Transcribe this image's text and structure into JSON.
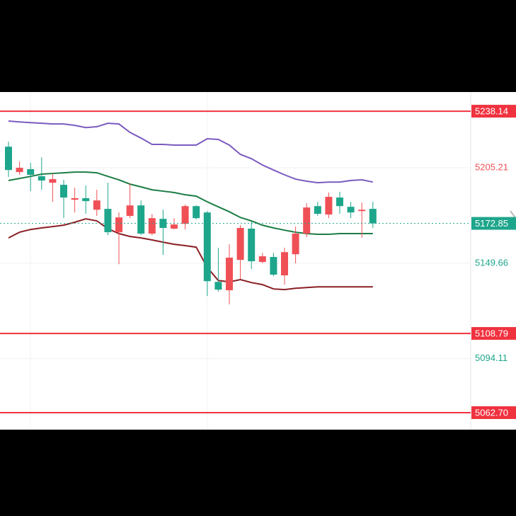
{
  "chart_data": {
    "type": "candlestick",
    "open": [
      5217.5,
      5202.7,
      5204.4,
      5200.3,
      5196.5,
      5195.3,
      5186.6,
      5187.5,
      5180.8,
      5181.3,
      5167.7,
      5177.2,
      5183.3,
      5166.9,
      5175.5,
      5169.8,
      5172.6,
      5182.9,
      5179.2,
      5138.8,
      5133.9,
      5151.6,
      5169.8,
      5150.4,
      5153.3,
      5142.6,
      5154.9,
      5166.9,
      5182.9,
      5178.0,
      5187.9,
      5182.5,
      5180.0,
      5181.3
    ],
    "high": [
      5220.4,
      5208.9,
      5208.1,
      5211.3,
      5201.9,
      5198.2,
      5193.6,
      5194.9,
      5192.4,
      5196.5,
      5179.2,
      5196.1,
      5186.2,
      5178.4,
      5180.8,
      5175.9,
      5183.8,
      5183.3,
      5180.0,
      5158.6,
      5160.7,
      5171.8,
      5173.9,
      5155.7,
      5155.7,
      5158.6,
      5171.0,
      5184.6,
      5185.4,
      5190.8,
      5191.2,
      5185.4,
      5185.0,
      5185.4
    ],
    "low": [
      5199.8,
      5201.1,
      5191.6,
      5192.4,
      5185.4,
      5175.9,
      5179.2,
      5178.4,
      5177.2,
      5166.0,
      5149.1,
      5175.9,
      5166.0,
      5166.0,
      5154.5,
      5169.3,
      5169.3,
      5175.1,
      5130.6,
      5133.1,
      5125.7,
      5140.5,
      5146.3,
      5149.6,
      5142.1,
      5137.2,
      5149.6,
      5164.8,
      5177.2,
      5175.9,
      5178.4,
      5175.9,
      5164.4,
      5170.2
    ],
    "close": [
      5203.9,
      5205.2,
      5201.1,
      5197.8,
      5198.6,
      5187.9,
      5187.5,
      5185.8,
      5186.2,
      5167.7,
      5176.3,
      5183.3,
      5166.9,
      5175.9,
      5170.2,
      5172.2,
      5182.9,
      5175.9,
      5139.2,
      5134.3,
      5152.9,
      5170.2,
      5150.8,
      5153.7,
      5143.0,
      5156.1,
      5166.9,
      5182.1,
      5178.4,
      5188.3,
      5182.9,
      5179.2,
      5180.8,
      5172.85
    ],
    "up_color": "#ef5056",
    "down_color": "#1ea68c",
    "series": [
      {
        "color": "#7b5bc0",
        "values": [
          5232.4,
          5231.9,
          5231.5,
          5231.1,
          5230.7,
          5230.7,
          5229.9,
          5228.6,
          5229.1,
          5231.1,
          5230.7,
          5225.8,
          5222.5,
          5218.8,
          5218.8,
          5218.4,
          5218.4,
          5218.4,
          5222.1,
          5221.7,
          5218.4,
          5213.0,
          5210.5,
          5206.8,
          5203.9,
          5201.1,
          5198.6,
          5197.4,
          5196.5,
          5196.9,
          5196.9,
          5197.8,
          5198.2,
          5196.9
        ]
      },
      {
        "color": "#1c7d45",
        "values": [
          5197.8,
          5199.0,
          5200.2,
          5201.5,
          5201.9,
          5202.3,
          5202.7,
          5202.7,
          5202.3,
          5200.2,
          5198.2,
          5195.7,
          5194.1,
          5192.4,
          5191.6,
          5190.8,
          5189.5,
          5188.7,
          5185.4,
          5182.5,
          5179.6,
          5176.3,
          5174.3,
          5171.8,
          5170.2,
          5168.9,
          5167.7,
          5166.9,
          5166.5,
          5166.5,
          5166.9,
          5166.9,
          5166.9,
          5166.9
        ]
      },
      {
        "color": "#8a1f24",
        "values": [
          5164.4,
          5167.7,
          5169.3,
          5170.2,
          5171.0,
          5171.8,
          5173.5,
          5175.5,
          5174.3,
          5169.8,
          5166.9,
          5165.2,
          5164.4,
          5163.2,
          5161.9,
          5160.7,
          5159.9,
          5159.0,
          5147.2,
          5139.6,
          5138.8,
          5140.1,
          5138.4,
          5137.2,
          5134.7,
          5134.3,
          5135.1,
          5135.5,
          5135.9,
          5135.9,
          5135.9,
          5135.9,
          5135.9,
          5135.9
        ]
      }
    ],
    "ylim": [
      5052.8,
      5249.3
    ],
    "yticks": [
      5205.21,
      5149.66,
      5094.11
    ],
    "ytick_colors": [
      "#ef5056",
      "#1ea68c",
      "#1ea68c"
    ],
    "grid": true,
    "price_lines": [
      5238.14,
      5108.79,
      {
        "value": 5062.7,
        "label": "5062.70"
      }
    ],
    "price_line_color": "#f0323f",
    "last_price": 5172.85,
    "last_price_color": "#1ea68c"
  }
}
